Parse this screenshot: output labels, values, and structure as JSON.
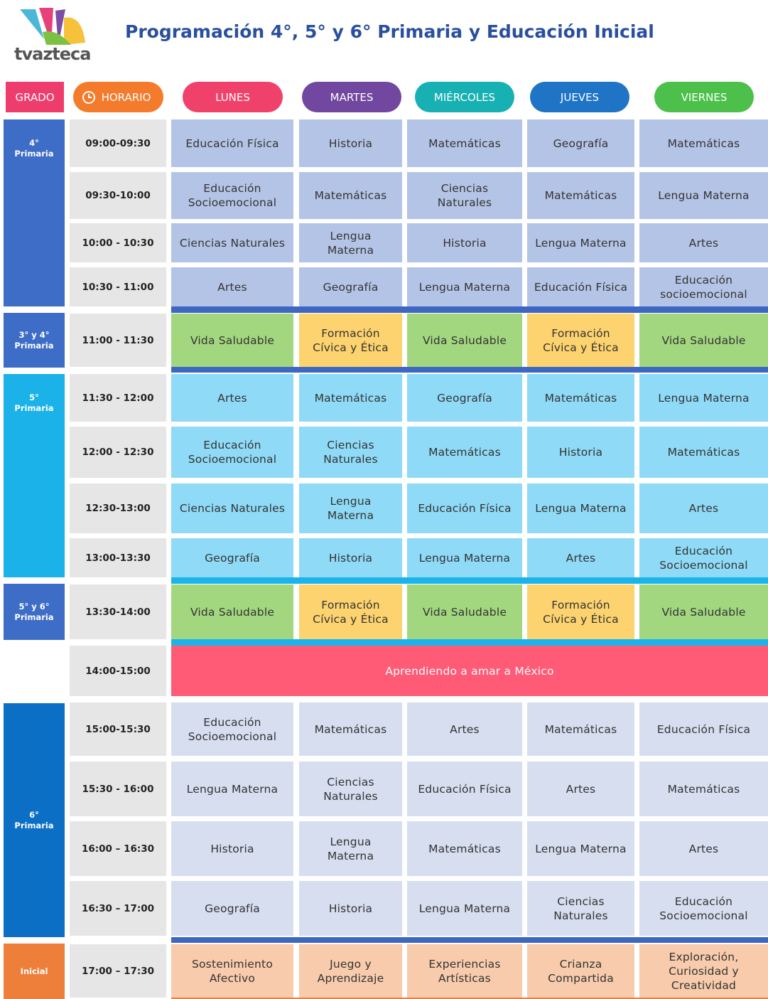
{
  "header": {
    "logo_text": "tvazteca",
    "title": "Programación 4°, 5° y 6° Primaria y Educación Inicial"
  },
  "columns": [
    "GRADO",
    "HORARIO",
    "LUNES",
    "MARTES",
    "MIÉRCOLES",
    "JUEVES",
    "VIERNES"
  ],
  "blocks": [
    {
      "grade": "4°\nPrimaria",
      "rows": [
        {
          "time": "09:00-09:30",
          "cells": [
            "Educación Física",
            "Historia",
            "Matemáticas",
            "Geografía",
            "Matemáticas"
          ]
        },
        {
          "time": "09:30-10:00",
          "cells": [
            "Educación\nSocioemocional",
            "Matemáticas",
            "Ciencias\nNaturales",
            "Matemáticas",
            "Lengua Materna"
          ]
        },
        {
          "time": "10:00 - 10:30",
          "cells": [
            "Ciencias Naturales",
            "Lengua\nMaterna",
            "Historia",
            "Lengua Materna",
            "Artes"
          ]
        },
        {
          "time": "10:30 - 11:00",
          "cells": [
            "Artes",
            "Geografía",
            "Lengua Materna",
            "Educación Física",
            "Educación\nsocioemocional"
          ]
        }
      ]
    },
    {
      "grade": "3° y 4°\nPrimaria",
      "rows": [
        {
          "time": "11:00 - 11:30",
          "cells": [
            "Vida Saludable",
            "Formación\nCívica y Ética",
            "Vida Saludable",
            "Formación\nCívica y Ética",
            "Vida Saludable"
          ]
        }
      ]
    },
    {
      "grade": "5°\nPrimaria",
      "rows": [
        {
          "time": "11:30 - 12:00",
          "cells": [
            "Artes",
            "Matemáticas",
            "Geografía",
            "Matemáticas",
            "Lengua Materna"
          ]
        },
        {
          "time": "12:00 - 12:30",
          "cells": [
            "Educación\nSocioemocional",
            "Ciencias\nNaturales",
            "Matemáticas",
            "Historia",
            "Matemáticas"
          ]
        },
        {
          "time": "12:30-13:00",
          "cells": [
            "Ciencias Naturales",
            "Lengua\nMaterna",
            "Educación Física",
            "Lengua Materna",
            "Artes"
          ]
        },
        {
          "time": "13:00-13:30",
          "cells": [
            "Geografía",
            "Historia",
            "Lengua Materna",
            "Artes",
            "Educación\nSocioemocional"
          ]
        }
      ]
    },
    {
      "grade": "5° y 6°\nPrimaria",
      "rows": [
        {
          "time": "13:30-14:00",
          "cells": [
            "Vida Saludable",
            "Formación\nCívica y Ética",
            "Vida Saludable",
            "Formación\nCívica y Ética",
            "Vida Saludable"
          ]
        }
      ]
    },
    {
      "rows": [
        {
          "time": "14:00-15:00",
          "span": "Aprendiendo a amar a México"
        }
      ]
    },
    {
      "grade": "6°\nPrimaria",
      "rows": [
        {
          "time": "15:00-15:30",
          "cells": [
            "Educación\nSocioemocional",
            "Matemáticas",
            "Artes",
            "Matemáticas",
            "Educación Física"
          ]
        },
        {
          "time": "15:30 - 16:00",
          "cells": [
            "Lengua Materna",
            "Ciencias\nNaturales",
            "Educación Física",
            "Artes",
            "Matemáticas"
          ]
        },
        {
          "time": "16:00 – 16:30",
          "cells": [
            "Historia",
            "Lengua\nMaterna",
            "Matemáticas",
            "Lengua Materna",
            "Artes"
          ]
        },
        {
          "time": "16:30 – 17:00",
          "cells": [
            "Geografía",
            "Historia",
            "Lengua Materna",
            "Ciencias\nNaturales",
            "Educación\nSocioemocional"
          ]
        }
      ]
    },
    {
      "grade": "Inicial",
      "rows": [
        {
          "time": "17:00 – 17:30",
          "cells": [
            "Sostenimiento\nAfectivo",
            "Juego y\nAprendizaje",
            "Experiencias\nArtísticas",
            "Crianza\nCompartida",
            "Exploración,\nCuriosidad y\nCreatividad"
          ]
        }
      ]
    }
  ]
}
